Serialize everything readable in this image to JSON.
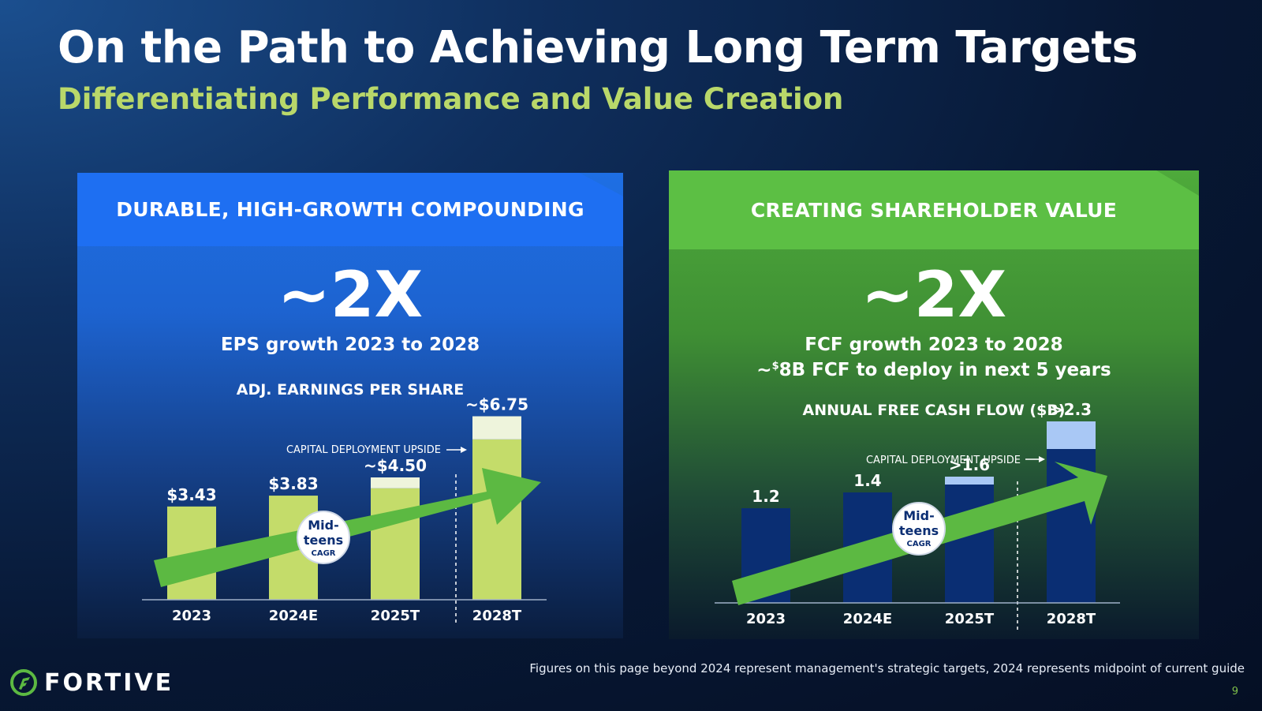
{
  "title": "On the Path to Achieving Long Term Targets",
  "subtitle": "Differentiating Performance and Value Creation",
  "left_panel": {
    "header": "DURABLE, HIGH-GROWTH COMPOUNDING",
    "big": "~2X",
    "desc": "EPS growth 2023 to 2028",
    "chart_title": "ADJ. EARNINGS PER SHARE",
    "upside_label": "CAPITAL DEPLOYMENT UPSIDE",
    "badge": {
      "line1": "Mid-",
      "line2": "teens",
      "line3": "CAGR"
    }
  },
  "right_panel": {
    "header": "CREATING SHAREHOLDER VALUE",
    "big": "~2X",
    "desc1": "FCF growth 2023 to 2028",
    "desc2_prefix": "~",
    "desc2_sup": "$",
    "desc2_rest": "8B FCF to deploy in next 5 years",
    "chart_title": "ANNUAL FREE CASH FLOW ($B)",
    "upside_label": "CAPITAL DEPLOYMENT UPSIDE",
    "badge": {
      "line1": "Mid-",
      "line2": "teens",
      "line3": "CAGR"
    }
  },
  "footnote": "Figures on this page beyond 2024 represent management's strategic targets, 2024 represents midpoint of current guide",
  "page_number": "9",
  "logo_text": "FORTIVE",
  "colors": {
    "eps_bar": "#c4dc6a",
    "eps_upside": "#eef4dc",
    "fcf_bar": "#0a2e73",
    "fcf_upside": "#a9c8f5",
    "arrow": "#5cb942"
  },
  "chart_data": [
    {
      "type": "bar",
      "title": "ADJ. EARNINGS PER SHARE",
      "categories": [
        "2023",
        "2024E",
        "2025T",
        "2028T"
      ],
      "series": [
        {
          "name": "base",
          "values": [
            3.43,
            3.83,
            4.1,
            5.9
          ]
        },
        {
          "name": "CAPITAL DEPLOYMENT UPSIDE",
          "values": [
            0,
            0,
            0.4,
            0.85
          ]
        }
      ],
      "data_labels": [
        "$3.43",
        "$3.83",
        "~$4.50",
        "~$6.75"
      ],
      "ylim": [
        0,
        7.2
      ],
      "annotation": "Mid-teens CAGR"
    },
    {
      "type": "bar",
      "title": "ANNUAL FREE CASH FLOW ($B)",
      "categories": [
        "2023",
        "2024E",
        "2025T",
        "2028T"
      ],
      "series": [
        {
          "name": "base",
          "values": [
            1.2,
            1.4,
            1.5,
            1.95
          ]
        },
        {
          "name": "CAPITAL DEPLOYMENT UPSIDE",
          "values": [
            0,
            0,
            0.1,
            0.35
          ]
        }
      ],
      "data_labels": [
        "1.2",
        "1.4",
        ">1.6",
        ">2.3"
      ],
      "ylim": [
        0,
        2.8
      ],
      "annotation": "Mid-teens CAGR"
    }
  ]
}
